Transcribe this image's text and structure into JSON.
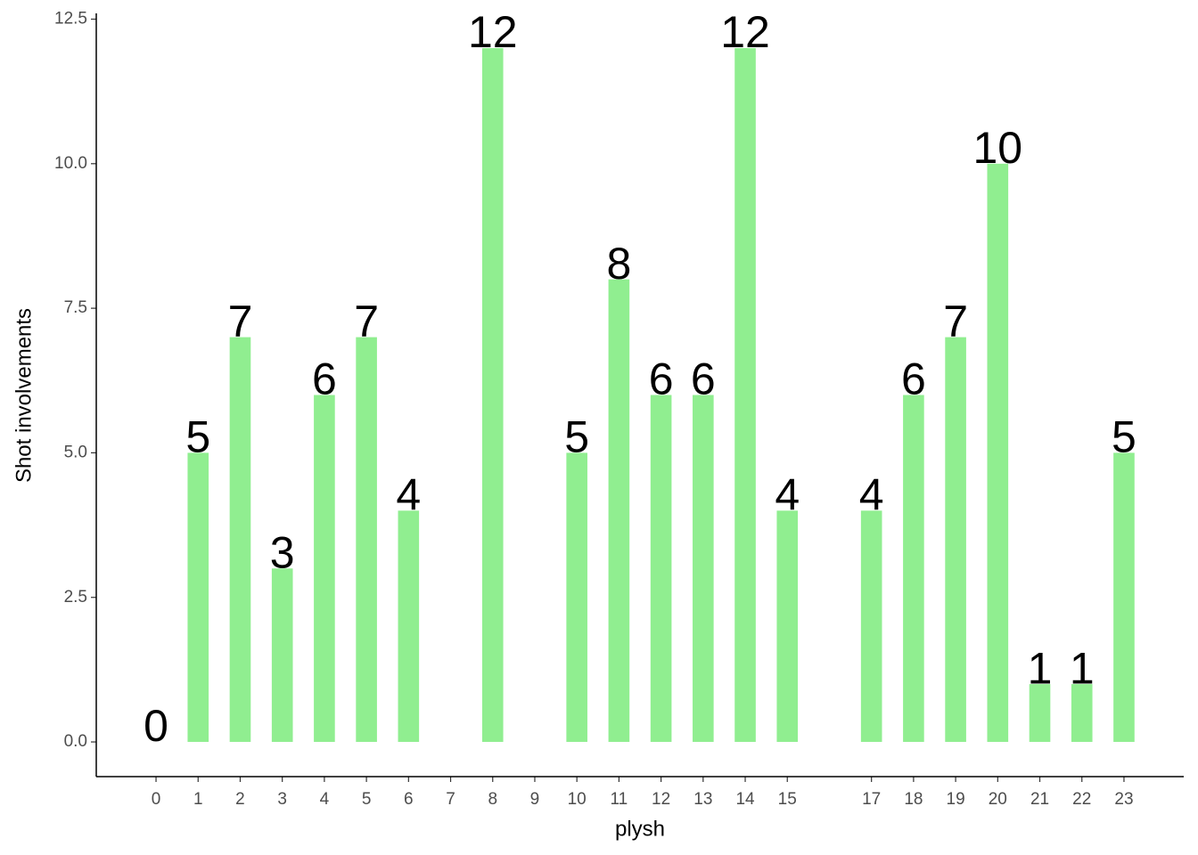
{
  "chart_data": {
    "type": "bar",
    "x_label": "plysh",
    "y_label": "Shot involvements",
    "x": [
      0,
      1,
      2,
      3,
      4,
      5,
      6,
      8,
      10,
      11,
      12,
      13,
      14,
      15,
      17,
      18,
      19,
      20,
      21,
      22,
      23
    ],
    "values": [
      0,
      5,
      7,
      3,
      6,
      7,
      4,
      12,
      5,
      8,
      6,
      6,
      12,
      4,
      4,
      6,
      7,
      10,
      1,
      1,
      5
    ],
    "color": "#90ee90",
    "xlim": [
      -1.42,
      24.42
    ],
    "xticks": [
      0,
      1,
      2,
      3,
      4,
      5,
      6,
      7,
      8,
      9,
      10,
      11,
      12,
      13,
      14,
      15,
      17,
      18,
      19,
      20,
      21,
      22,
      23
    ],
    "ylim": [
      -0.6,
      12.6
    ],
    "yticks": [
      {
        "value": 0,
        "label": "0.0"
      },
      2.5,
      {
        "value": 5,
        "label": "5.0"
      },
      7.5,
      {
        "value": 10,
        "label": "10.0"
      },
      12.5
    ],
    "grid": false
  }
}
